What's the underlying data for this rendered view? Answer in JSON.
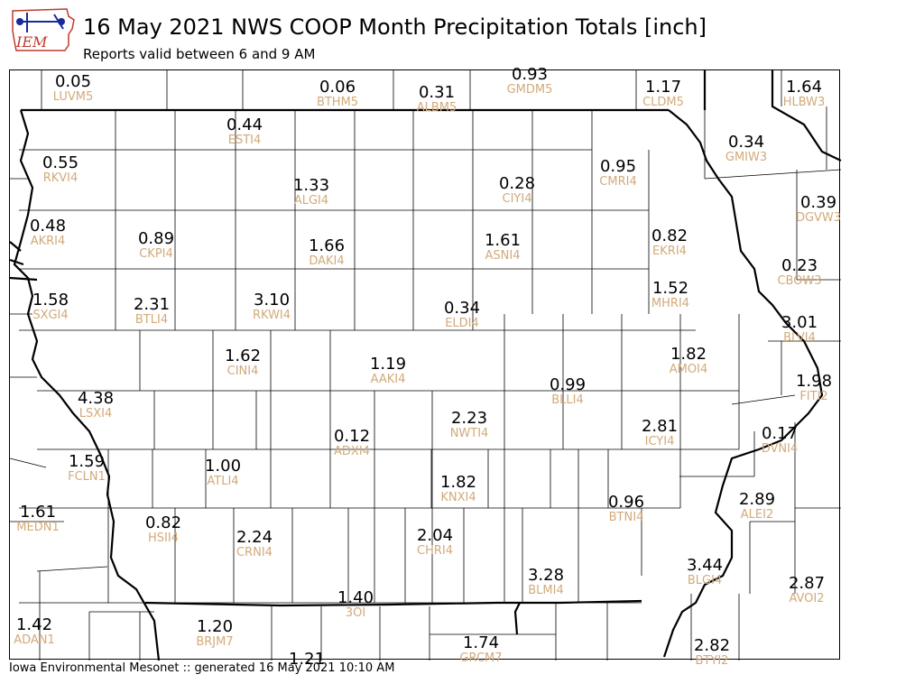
{
  "header": {
    "logo_text": "IEM",
    "title": "16 May 2021 NWS COOP Month Precipitation Totals [inch]",
    "subtitle": "Reports valid between 6 and 9 AM"
  },
  "footer": {
    "text": "Iowa Environmental Mesonet :: generated 16 May 2021 10:10 AM"
  },
  "colors": {
    "value_text": "#000000",
    "station_text": "#d2aa7a",
    "logo_red": "#c0392b",
    "logo_blue": "#1a2a9a"
  },
  "stations": [
    {
      "id": "LUVM5",
      "value": "0.05"
    },
    {
      "id": "BTHM5",
      "value": "0.06"
    },
    {
      "id": "ALBM5",
      "value": "0.31"
    },
    {
      "id": "GMDM5",
      "value": "0.93"
    },
    {
      "id": "CLDM5",
      "value": "1.17"
    },
    {
      "id": "HLBW3",
      "value": "1.64"
    },
    {
      "id": "ESTI4",
      "value": "0.44"
    },
    {
      "id": "RKVI4",
      "value": "0.55"
    },
    {
      "id": "GMIW3",
      "value": "0.34"
    },
    {
      "id": "ALGI4",
      "value": "1.33"
    },
    {
      "id": "CIYI4",
      "value": "0.28"
    },
    {
      "id": "CMRI4",
      "value": "0.95"
    },
    {
      "id": "DGVW3",
      "value": "0.39"
    },
    {
      "id": "AKRI4",
      "value": "0.48"
    },
    {
      "id": "CKPI4",
      "value": "0.89"
    },
    {
      "id": "DAKI4",
      "value": "1.66"
    },
    {
      "id": "ASNI4",
      "value": "1.61"
    },
    {
      "id": "EKRI4",
      "value": "0.82"
    },
    {
      "id": "CBOW3",
      "value": "0.23"
    },
    {
      "id": "SXGI4",
      "value": "1.58"
    },
    {
      "id": "BTLI4",
      "value": "2.31"
    },
    {
      "id": "RKWI4",
      "value": "3.10"
    },
    {
      "id": "ELDI4",
      "value": "0.34"
    },
    {
      "id": "MHRI4",
      "value": "1.52"
    },
    {
      "id": "BLVI4",
      "value": "3.01"
    },
    {
      "id": "CINI4",
      "value": "1.62"
    },
    {
      "id": "AMOI4",
      "value": "1.82"
    },
    {
      "id": "AAKI4",
      "value": "1.19"
    },
    {
      "id": "BLLI4",
      "value": "0.99"
    },
    {
      "id": "FITI2",
      "value": "1.98"
    },
    {
      "id": "LSXI4",
      "value": "4.38"
    },
    {
      "id": "NWTI4",
      "value": "2.23"
    },
    {
      "id": "ICYI4",
      "value": "2.81"
    },
    {
      "id": "ADXI4",
      "value": "0.12"
    },
    {
      "id": "DVNI4",
      "value": "0.17"
    },
    {
      "id": "FCLN1",
      "value": "1.59"
    },
    {
      "id": "ATLI4",
      "value": "1.00"
    },
    {
      "id": "KNXI4",
      "value": "1.82"
    },
    {
      "id": "BTNI4",
      "value": "0.96"
    },
    {
      "id": "ALEI2",
      "value": "2.89"
    },
    {
      "id": "MEDN1",
      "value": "1.61"
    },
    {
      "id": "HSII4",
      "value": "0.82"
    },
    {
      "id": "CRNI4",
      "value": "2.24"
    },
    {
      "id": "CHRI4",
      "value": "2.04"
    },
    {
      "id": "BLMI4",
      "value": "3.28"
    },
    {
      "id": "BLGI4",
      "value": "3.44"
    },
    {
      "id": "AVOI2",
      "value": "2.87"
    },
    {
      "id": "3OI",
      "value": "1.40"
    },
    {
      "id": "ADAN1",
      "value": "1.42"
    },
    {
      "id": "BRJM7",
      "value": "1.20"
    },
    {
      "id": "GRCM7",
      "value": "1.74"
    },
    {
      "id": "BTYI2",
      "value": "2.82"
    },
    {
      "id": "",
      "value": "1.21"
    }
  ]
}
